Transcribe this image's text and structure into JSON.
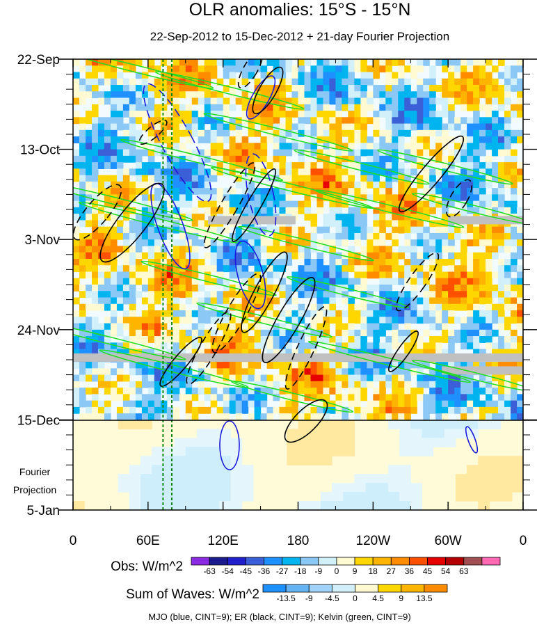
{
  "chart_data": {
    "type": "heatmap",
    "title": "OLR anomalies: 15°S - 15°N",
    "subtitle": "22-Sep-2012 to 15-Dec-2012 + 21-day Fourier Projection",
    "x_ticks": [
      {
        "label": "0",
        "lon": 0
      },
      {
        "label": "60E",
        "lon": 60
      },
      {
        "label": "120E",
        "lon": 120
      },
      {
        "label": "180",
        "lon": 180
      },
      {
        "label": "120W",
        "lon": 240
      },
      {
        "label": "60W",
        "lon": 300
      },
      {
        "label": "0",
        "lon": 360
      }
    ],
    "y_ticks": [
      {
        "label": "22-Sep",
        "day": 0
      },
      {
        "label": "13-Oct",
        "day": 21
      },
      {
        "label": "3-Nov",
        "day": 42
      },
      {
        "label": "24-Nov",
        "day": 63
      },
      {
        "label": "15-Dec",
        "day": 84
      },
      {
        "label": "5-Jan",
        "day": 105
      }
    ],
    "xlim": [
      0,
      360
    ],
    "ylim_days": [
      0,
      105
    ],
    "projection_start_day": 84,
    "projection_label": [
      "Fourier",
      "Projection"
    ],
    "obs_colorbar": {
      "label": "Obs: W/m^2",
      "ticks": [
        "-63",
        "-54",
        "-45",
        "-36",
        "-27",
        "-18",
        "-9",
        "0",
        "9",
        "18",
        "27",
        "36",
        "45",
        "54",
        "63"
      ],
      "colors": [
        "#8a2be2",
        "#1a1a8c",
        "#1f1fcc",
        "#3a5fd6",
        "#1e90ff",
        "#00b4f0",
        "#8cc8f5",
        "#d2f0fa",
        "#fffad2",
        "#ffd700",
        "#ffb400",
        "#ff8c00",
        "#ff5000",
        "#e60000",
        "#b40000",
        "#a05050",
        "#ff69b4"
      ]
    },
    "waves_colorbar": {
      "label": "Sum of Waves: W/m^2",
      "ticks": [
        "-13.5",
        "-9",
        "-4.5",
        "0",
        "4.5",
        "9",
        "13.5"
      ],
      "colors": [
        "#1e90ff",
        "#64b4f5",
        "#a0d2fa",
        "#d2f0fa",
        "#fffad2",
        "#ffd700",
        "#ffb400",
        "#ff8c00"
      ]
    },
    "contour_note": "MJO (blue, CINT=9); ER (black, CINT=9); Kelvin (green, CINT=9)",
    "series": [
      {
        "name": "MJO",
        "color": "#1a1adc"
      },
      {
        "name": "ER",
        "color": "#000000"
      },
      {
        "name": "Kelvin",
        "color": "#22dd22"
      }
    ],
    "missing_data_bands": [
      {
        "lon": [
          108,
          178
        ],
        "day_center": 37.5
      },
      {
        "lon": [
          300,
          360
        ],
        "day_center": 37.5
      },
      {
        "lon": [
          0,
          360
        ],
        "day_center": 69.5
      },
      {
        "lon": [
          295,
          360
        ],
        "day_center": 72.5
      }
    ],
    "reference_lines": [
      {
        "lon": 72,
        "style": "dotted",
        "color": "#118811"
      },
      {
        "lon": 79,
        "style": "dotted",
        "color": "#118811"
      }
    ]
  }
}
